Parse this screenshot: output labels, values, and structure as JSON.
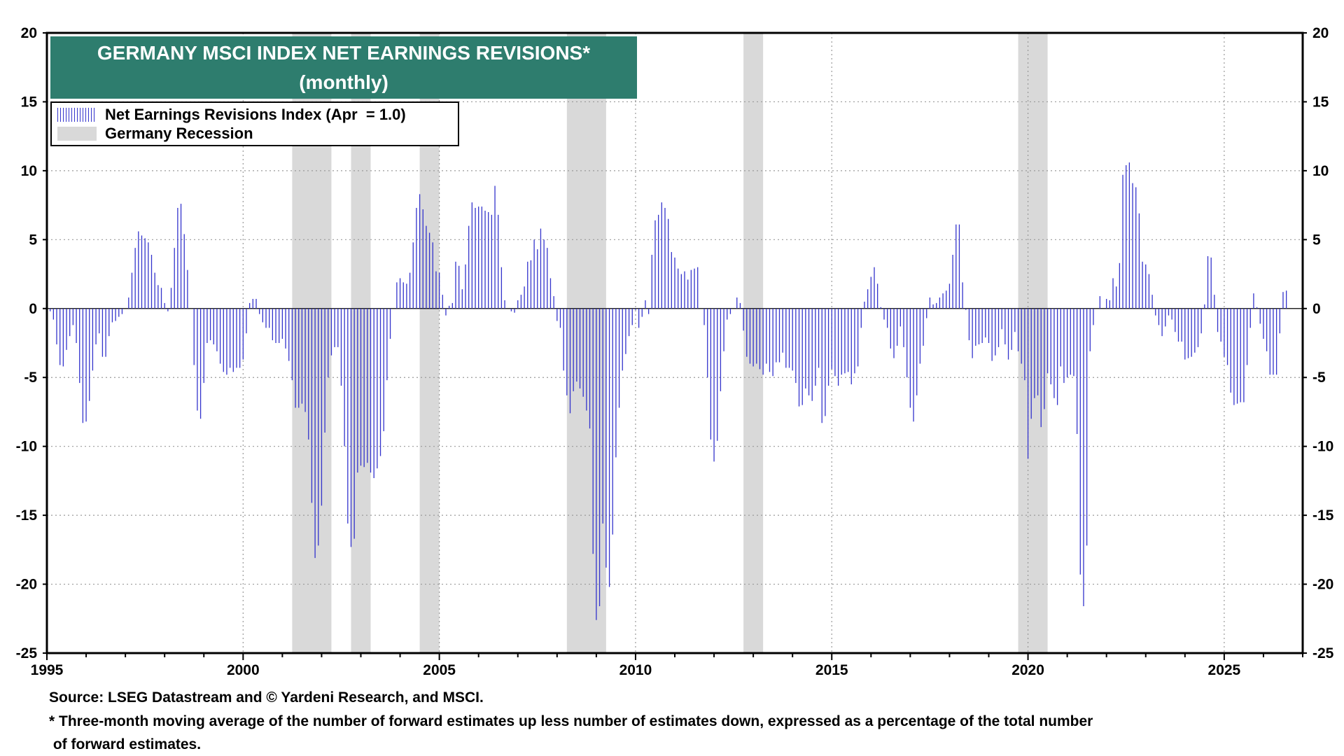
{
  "chart_data": {
    "type": "bar",
    "title": "GERMANY MSCI INDEX NET EARNINGS REVISIONS*",
    "subtitle": "(monthly)",
    "frequency": "monthly",
    "x_start": 1995.0,
    "xlim": [
      1995,
      2027
    ],
    "ylim": [
      -25,
      20
    ],
    "xticks": [
      1995,
      2000,
      2005,
      2010,
      2015,
      2020,
      2025
    ],
    "yticks": [
      20,
      15,
      10,
      5,
      0,
      -5,
      -10,
      -15,
      -20,
      -25
    ],
    "grid": true,
    "legend_position": "top-left",
    "series": [
      {
        "name": "Net Earnings Revisions Index (Apr  = 1.0)",
        "color": "#3333cc",
        "values": [
          0.3,
          -0.2,
          -0.8,
          -2.6,
          -4.1,
          -4.2,
          -3.0,
          -2.0,
          -1.2,
          -2.5,
          -5.4,
          -8.3,
          -8.2,
          -6.7,
          -4.5,
          -2.6,
          -1.8,
          -3.5,
          -3.5,
          -2.0,
          -1.0,
          -0.9,
          -0.6,
          -0.4,
          0.0,
          0.8,
          2.6,
          4.4,
          5.6,
          5.3,
          5.1,
          4.8,
          3.9,
          2.6,
          1.7,
          1.5,
          0.4,
          -0.2,
          1.5,
          4.4,
          7.3,
          7.6,
          5.4,
          2.8,
          0.0,
          -4.1,
          -7.4,
          -8.0,
          -5.4,
          -2.5,
          -2.3,
          -2.6,
          -3.1,
          -4.0,
          -4.6,
          -4.8,
          -4.3,
          -4.6,
          -4.3,
          -4.3,
          -3.7,
          -1.8,
          0.4,
          0.7,
          0.7,
          -0.4,
          -1.0,
          -1.4,
          -1.4,
          -2.3,
          -2.5,
          -2.5,
          -2.2,
          -2.9,
          -3.8,
          -5.2,
          -7.2,
          -7.2,
          -6.9,
          -7.5,
          -9.5,
          -14.1,
          -18.1,
          -17.2,
          -14.3,
          -9.0,
          -5.0,
          -3.4,
          -2.8,
          -2.8,
          -5.6,
          -10.0,
          -15.6,
          -17.3,
          -16.7,
          -11.9,
          -11.4,
          -11.5,
          -11.2,
          -11.9,
          -12.3,
          -11.6,
          -10.7,
          -8.9,
          -5.2,
          -2.2,
          0.0,
          1.9,
          2.2,
          1.9,
          1.8,
          2.6,
          4.8,
          7.3,
          8.3,
          7.2,
          6.0,
          5.5,
          4.8,
          2.7,
          2.6,
          1.0,
          -0.5,
          0.2,
          0.4,
          3.4,
          3.1,
          1.4,
          3.2,
          6.0,
          7.7,
          7.3,
          7.4,
          7.4,
          7.1,
          7.0,
          6.8,
          8.9,
          6.8,
          3.0,
          0.6,
          0.0,
          -0.2,
          -0.3,
          0.6,
          1.0,
          1.6,
          3.4,
          3.5,
          5.0,
          4.3,
          5.8,
          5.0,
          4.4,
          2.2,
          0.9,
          -0.9,
          -1.4,
          -4.5,
          -6.3,
          -7.6,
          -6.0,
          -5.3,
          -5.8,
          -6.4,
          -7.4,
          -8.7,
          -17.8,
          -22.6,
          -21.6,
          -15.6,
          -18.8,
          -20.2,
          -16.4,
          -10.8,
          -7.2,
          -4.5,
          -3.3,
          -2.0,
          -1.2,
          -0.1,
          -1.4,
          -0.6,
          0.6,
          -0.4,
          3.9,
          6.4,
          6.8,
          7.7,
          7.3,
          6.5,
          4.1,
          3.7,
          2.9,
          2.5,
          2.7,
          2.1,
          2.8,
          2.9,
          3.0,
          0.0,
          -1.2,
          -5.0,
          -9.5,
          -11.1,
          -9.6,
          -6.0,
          -3.1,
          -0.8,
          -0.4,
          0.0,
          0.8,
          0.4,
          -1.6,
          -3.5,
          -4.0,
          -4.2,
          -4.0,
          -4.4,
          -4.8,
          -4.0,
          -4.6,
          -4.9,
          -3.9,
          -3.9,
          -3.2,
          -4.3,
          -4.3,
          -4.5,
          -5.4,
          -7.1,
          -7.0,
          -5.8,
          -6.3,
          -6.7,
          -5.6,
          -4.3,
          -8.3,
          -7.8,
          -5.6,
          -4.4,
          -4.9,
          -5.6,
          -4.8,
          -4.7,
          -4.6,
          -5.5,
          -4.7,
          -4.2,
          -1.4,
          0.5,
          1.4,
          2.3,
          3.0,
          1.8,
          0.1,
          -0.8,
          -1.4,
          -2.9,
          -3.6,
          -2.7,
          -1.3,
          -2.8,
          -5.0,
          -7.2,
          -8.2,
          -6.3,
          -4.0,
          -2.7,
          -0.7,
          0.8,
          0.3,
          0.4,
          0.8,
          1.1,
          1.3,
          1.8,
          3.9,
          6.1,
          6.1,
          1.9,
          -0.1,
          -2.3,
          -3.6,
          -2.7,
          -2.6,
          -2.5,
          -2.1,
          -2.5,
          -3.8,
          -3.4,
          -2.8,
          -1.5,
          -2.6,
          -3.7,
          -3.0,
          -1.7,
          -3.1,
          -4.0,
          -5.2,
          -10.9,
          -8.0,
          -6.5,
          -6.3,
          -8.6,
          -7.3,
          -4.7,
          -5.5,
          -6.5,
          -7.0,
          -4.2,
          -5.4,
          -5.0,
          -4.8,
          -4.9,
          -9.1,
          -19.3,
          -21.6,
          -17.2,
          -3.1,
          -1.2,
          0.0,
          0.9,
          0.0,
          0.7,
          0.6,
          2.2,
          1.6,
          3.3,
          9.7,
          10.4,
          10.6,
          9.1,
          8.8,
          6.9,
          3.4,
          3.2,
          2.5,
          1.0,
          -0.5,
          -1.2,
          -2.0,
          -1.3,
          -0.5,
          -0.8,
          -1.7,
          -2.4,
          -2.4,
          -3.7,
          -3.6,
          -3.5,
          -3.2,
          -2.8,
          -1.8,
          0.3,
          3.8,
          3.7,
          1.0,
          -1.7,
          -2.4,
          -3.5,
          -4.1,
          -6.1,
          -7.0,
          -6.9,
          -6.8,
          -6.8,
          -4.1,
          -1.4,
          1.1,
          0.1,
          -1.1,
          -2.2,
          -3.1,
          -4.8,
          -4.8,
          -4.8,
          -1.8,
          1.2,
          1.3
        ]
      }
    ],
    "shaded_regions_name": "Germany Recession",
    "shaded_regions": [
      [
        2001.25,
        2002.25
      ],
      [
        2002.75,
        2003.25
      ],
      [
        2004.5,
        2005.0
      ],
      [
        2008.25,
        2009.25
      ],
      [
        2012.75,
        2013.25
      ],
      [
        2019.75,
        2020.5
      ]
    ],
    "footnotes": [
      "Source: LSEG Datastream and © Yardeni Research, and MSCI.",
      "* Three-month moving average of the number of forward estimates up less number of estimates down, expressed as a percentage of the total number",
      " of forward estimates."
    ]
  }
}
